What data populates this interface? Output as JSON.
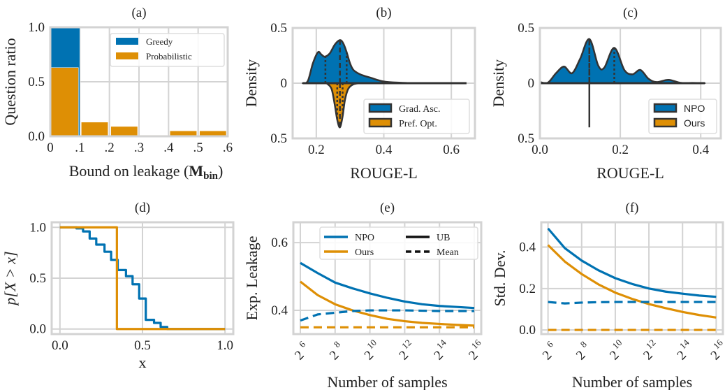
{
  "colors": {
    "blue": "#0072b2",
    "orange": "#de8f05",
    "grid": "#d3d3d3",
    "edge": "#333333"
  },
  "chart_data": [
    {
      "id": "a",
      "type": "bar",
      "title": "(a)",
      "xlabel": "Bound on leakage (",
      "xlabel_bold": "M",
      "xlabel_sub": "bin",
      "xlabel_end": ")",
      "ylabel": "Question ratio",
      "xlim": [
        0,
        0.6
      ],
      "ylim": [
        0,
        1.0
      ],
      "xticks": [
        0,
        0.1,
        0.2,
        0.3,
        0.4,
        0.5,
        0.6
      ],
      "xticklabels": [
        "0",
        ".1",
        ".2",
        ".3",
        ".4",
        ".5",
        ".6"
      ],
      "yticks": [
        0,
        0.5,
        1.0
      ],
      "yticklabels": [
        "0.0",
        "0.5",
        "1.0"
      ],
      "bin_edges": [
        0,
        0.1,
        0.2,
        0.3,
        0.4,
        0.5,
        0.6
      ],
      "series": [
        {
          "name": "Greedy",
          "color": "blue",
          "values": [
            1.0,
            0,
            0,
            0,
            0,
            0
          ]
        },
        {
          "name": "Probabilistic",
          "color": "orange",
          "values": [
            0.63,
            0.13,
            0.09,
            0.01,
            0.05,
            0.05
          ]
        }
      ],
      "legend": {
        "position": "top-right",
        "entries": [
          "Greedy",
          "Probabilistic"
        ]
      },
      "grid": true
    },
    {
      "id": "b",
      "type": "violin",
      "title": "(b)",
      "xlabel": "ROUGE-L",
      "ylabel": "Density",
      "xlim": [
        0.13,
        0.67
      ],
      "ylim": [
        -0.5,
        0.5
      ],
      "xticks": [
        0.2,
        0.4,
        0.6
      ],
      "xticklabels": [
        "0.2",
        "0.4",
        "0.6"
      ],
      "yticks": [
        0.5,
        0,
        -0.5
      ],
      "yticklabels": [
        "0.5",
        "0",
        "0.5"
      ],
      "series": [
        {
          "name": "Grad. Asc.",
          "color": "blue",
          "side": "top",
          "x": [
            0.16,
            0.175,
            0.19,
            0.205,
            0.215,
            0.225,
            0.24,
            0.255,
            0.27,
            0.28,
            0.29,
            0.3,
            0.31,
            0.33,
            0.36,
            0.4,
            0.45,
            0.5,
            0.64
          ],
          "density": [
            0,
            0.02,
            0.18,
            0.28,
            0.26,
            0.24,
            0.27,
            0.35,
            0.39,
            0.36,
            0.28,
            0.18,
            0.12,
            0.08,
            0.05,
            0.015,
            0.004,
            0,
            0
          ],
          "quartiles": [
            0.227,
            0.27,
            0.29
          ]
        },
        {
          "name": "Pref. Opt.",
          "color": "orange",
          "side": "bottom",
          "x": [
            0.23,
            0.245,
            0.255,
            0.262,
            0.27,
            0.278,
            0.285,
            0.295,
            0.31,
            0.33
          ],
          "density": [
            0,
            0.05,
            0.2,
            0.33,
            0.4,
            0.3,
            0.15,
            0.05,
            0.01,
            0
          ],
          "quartiles": [
            0.262,
            0.27,
            0.278
          ]
        }
      ],
      "legend": {
        "position": "bottom-right",
        "entries": [
          "Grad. Asc.",
          "Pref. Opt."
        ]
      },
      "grid": true
    },
    {
      "id": "c",
      "type": "violin",
      "title": "(c)",
      "xlabel": "ROUGE-L",
      "ylabel": "Density",
      "xlim": [
        0.0,
        0.45
      ],
      "ylim": [
        -0.5,
        0.5
      ],
      "xticks": [
        0.0,
        0.2,
        0.4
      ],
      "xticklabels": [
        "0.0",
        "0.2",
        "0.4"
      ],
      "yticks": [
        0.5,
        0,
        -0.5
      ],
      "yticklabels": [
        "0.5",
        "0",
        "0.5"
      ],
      "series": [
        {
          "name": "NPO",
          "color": "blue",
          "side": "top",
          "x": [
            0.0,
            0.02,
            0.04,
            0.06,
            0.08,
            0.1,
            0.123,
            0.145,
            0.16,
            0.185,
            0.21,
            0.23,
            0.25,
            0.27,
            0.29,
            0.32,
            0.35,
            0.38,
            0.41
          ],
          "density": [
            0.01,
            0.005,
            0.09,
            0.15,
            0.09,
            0.22,
            0.4,
            0.16,
            0.14,
            0.32,
            0.12,
            0.08,
            0.12,
            0.04,
            0.01,
            0.03,
            0.003,
            0.002,
            0
          ],
          "quartiles": [
            0.123,
            0.123,
            0.185
          ]
        },
        {
          "name": "Ours",
          "color": "orange",
          "side": "bottom",
          "point_mass": 0.123,
          "spike_height": 0.4
        }
      ],
      "legend": {
        "position": "bottom-right",
        "entries": [
          "NPO",
          "Ours"
        ]
      },
      "grid": true
    },
    {
      "id": "d",
      "type": "line",
      "title": "(d)",
      "xlabel": "x",
      "ylabel": "p[X > x]",
      "xlim": [
        -0.05,
        1.05
      ],
      "ylim": [
        -0.05,
        1.05
      ],
      "xticks": [
        0.0,
        0.5,
        1.0
      ],
      "xticklabels": [
        "0.0",
        "0.5",
        "1.0"
      ],
      "yticks": [
        0.0,
        0.5,
        1.0
      ],
      "yticklabels": [
        "0.0",
        "0.5",
        "1.0"
      ],
      "series": [
        {
          "name": "NPO",
          "color": "blue",
          "step": true,
          "x": [
            0.0,
            0.1,
            0.14,
            0.18,
            0.22,
            0.27,
            0.31,
            0.35,
            0.4,
            0.44,
            0.48,
            0.52,
            0.57,
            0.61,
            0.65,
            1.0
          ],
          "y": [
            1.0,
            0.99,
            0.96,
            0.89,
            0.83,
            0.76,
            0.68,
            0.58,
            0.52,
            0.44,
            0.3,
            0.09,
            0.06,
            0.02,
            0.0,
            0.0
          ]
        },
        {
          "name": "Ours",
          "color": "orange",
          "step": true,
          "x": [
            0.0,
            0.345,
            1.0
          ],
          "y": [
            1.0,
            0.0,
            0.0
          ]
        }
      ],
      "grid": true
    },
    {
      "id": "e",
      "type": "line",
      "title": "(e)",
      "xlabel": "Number of samples",
      "ylabel": "Exp. Leakage",
      "xlim": [
        5.6,
        16.4
      ],
      "ylim": [
        0.33,
        0.66
      ],
      "x_exponents": [
        6,
        7,
        8,
        9,
        10,
        11,
        12,
        13,
        14,
        15,
        16
      ],
      "xticks": [
        6,
        8,
        10,
        12,
        14,
        16
      ],
      "xtick_base": "2",
      "xtick_exps": [
        "6",
        "8",
        "10",
        "12",
        "14",
        "16"
      ],
      "yticks": [
        0.4,
        0.6
      ],
      "yticklabels": [
        "0.4",
        "0.6"
      ],
      "series": [
        {
          "name": "NPO UB",
          "color": "blue",
          "dash": false,
          "y": [
            0.54,
            0.51,
            0.482,
            0.465,
            0.45,
            0.437,
            0.426,
            0.418,
            0.413,
            0.41,
            0.407
          ]
        },
        {
          "name": "Ours UB",
          "color": "orange",
          "dash": false,
          "y": [
            0.485,
            0.445,
            0.418,
            0.4,
            0.386,
            0.375,
            0.368,
            0.363,
            0.36,
            0.357,
            0.355
          ]
        },
        {
          "name": "NPO Mean",
          "color": "blue",
          "dash": true,
          "y": [
            0.37,
            0.388,
            0.393,
            0.398,
            0.4,
            0.4,
            0.4,
            0.399,
            0.398,
            0.398,
            0.398
          ]
        },
        {
          "name": "Ours Mean",
          "color": "orange",
          "dash": true,
          "y": [
            0.35,
            0.35,
            0.35,
            0.35,
            0.35,
            0.35,
            0.35,
            0.35,
            0.35,
            0.35,
            0.35
          ]
        }
      ],
      "legend": {
        "position": "top-right",
        "entries": [
          {
            "label": "NPO",
            "color": "blue",
            "dash": false
          },
          {
            "label": "UB",
            "color": "black",
            "dash": false
          },
          {
            "label": "Ours",
            "color": "orange",
            "dash": false
          },
          {
            "label": "Mean",
            "color": "black",
            "dash": true
          }
        ]
      },
      "grid": true
    },
    {
      "id": "f",
      "type": "line",
      "title": "(f)",
      "xlabel": "Number of samples",
      "ylabel": "Std. Dev.",
      "xlim": [
        5.6,
        16.4
      ],
      "ylim": [
        -0.02,
        0.52
      ],
      "x_exponents": [
        6,
        7,
        8,
        9,
        10,
        11,
        12,
        13,
        14,
        15,
        16
      ],
      "xticks": [
        6,
        8,
        10,
        12,
        14,
        16
      ],
      "xtick_base": "2",
      "xtick_exps": [
        "6",
        "8",
        "10",
        "12",
        "14",
        "16"
      ],
      "yticks": [
        0.0,
        0.2,
        0.4
      ],
      "yticklabels": [
        "0.0",
        "0.2",
        "0.4"
      ],
      "series": [
        {
          "name": "NPO UB",
          "color": "blue",
          "dash": false,
          "y": [
            0.49,
            0.395,
            0.335,
            0.288,
            0.25,
            0.222,
            0.2,
            0.185,
            0.175,
            0.166,
            0.16
          ]
        },
        {
          "name": "Ours UB",
          "color": "orange",
          "dash": false,
          "y": [
            0.41,
            0.33,
            0.27,
            0.22,
            0.18,
            0.15,
            0.125,
            0.105,
            0.087,
            0.072,
            0.06
          ]
        },
        {
          "name": "NPO Mean",
          "color": "blue",
          "dash": true,
          "y": [
            0.135,
            0.128,
            0.132,
            0.134,
            0.135,
            0.135,
            0.135,
            0.135,
            0.135,
            0.135,
            0.135
          ]
        },
        {
          "name": "Ours Mean",
          "color": "orange",
          "dash": true,
          "y": [
            0,
            0,
            0,
            0,
            0,
            0,
            0,
            0,
            0,
            0,
            0
          ]
        }
      ],
      "grid": true
    }
  ]
}
